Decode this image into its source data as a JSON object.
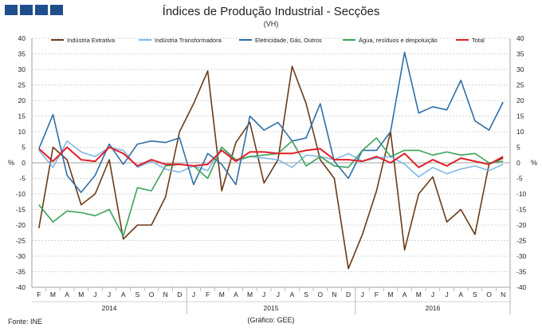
{
  "header": {
    "title": "Índices de Produção Industrial - Secções",
    "subtitle": "(VH)"
  },
  "footer": {
    "source": "Fonte: INE",
    "credit": "(Gráfico: GEE)"
  },
  "colors": {
    "logo": "#1f4e8c",
    "grid": "#c8c8c8"
  },
  "chart_data": {
    "type": "line",
    "title": "Índices de Produção Industrial - Secções",
    "subtitle": "(VH)",
    "ylabel": "%",
    "ylabel_right": "%",
    "ylim": [
      -40,
      40
    ],
    "yticks": [
      -40,
      -35,
      -30,
      -25,
      -20,
      -15,
      -10,
      -5,
      0,
      5,
      10,
      15,
      20,
      25,
      30,
      35,
      40
    ],
    "month_labels": [
      "F",
      "M",
      "A",
      "M",
      "J",
      "J",
      "A",
      "S",
      "O",
      "N",
      "D",
      "J",
      "F",
      "M",
      "A",
      "M",
      "J",
      "J",
      "A",
      "S",
      "O",
      "N",
      "D",
      "J",
      "F",
      "M",
      "A",
      "M",
      "J",
      "J",
      "A",
      "S",
      "O",
      "N"
    ],
    "year_groups": [
      {
        "label": "2014",
        "start": 0,
        "end": 10
      },
      {
        "label": "2015",
        "start": 11,
        "end": 22
      },
      {
        "label": "2016",
        "start": 23,
        "end": 33
      }
    ],
    "legend_position": "top",
    "series": [
      {
        "name": "Indústria Extrativa",
        "color": "#6b3a16",
        "values": [
          -21,
          5,
          1,
          -13.5,
          -10,
          1,
          -24.5,
          -20,
          -20,
          -11,
          10,
          19,
          29.5,
          -9,
          6.5,
          13,
          -6.5,
          1,
          31,
          19,
          1,
          -5,
          -34,
          -23,
          -9,
          10,
          -28,
          -10,
          -4.5,
          -19,
          -15,
          -23,
          -0.5,
          1.5
        ]
      },
      {
        "name": "Indústria Transformadora",
        "color": "#7fb9e6",
        "values": [
          4,
          -1.5,
          7,
          3.5,
          2,
          5,
          4,
          -1.5,
          0.5,
          -2,
          -3,
          -1,
          -2.5,
          5,
          0.5,
          2,
          1.5,
          1,
          -1.5,
          2.5,
          2,
          1,
          3,
          0.5,
          1.5,
          2,
          -0.5,
          -4.5,
          -1.5,
          -3.5,
          -2,
          -1,
          -2.5,
          -0.5
        ]
      },
      {
        "name": "Eletricidade, Gás, Outros",
        "color": "#2e6fa7",
        "values": [
          4.5,
          15.5,
          -4,
          -9.5,
          -4,
          6,
          -0.5,
          6,
          7,
          6.5,
          8,
          -7,
          3,
          -0.5,
          -7,
          15,
          10.5,
          13,
          7,
          8,
          19,
          0.5,
          -5,
          4,
          4,
          10,
          35.5,
          16,
          18,
          17,
          26.5,
          13.5,
          10.5,
          19.5
        ]
      },
      {
        "name": "Água, resíduos e despoluição",
        "color": "#3aa35a",
        "values": [
          -13.5,
          -19,
          -15.5,
          -16,
          -17,
          -15,
          -23.5,
          -8,
          -9,
          -1,
          -0.5,
          -1,
          -5,
          5,
          1,
          2,
          2.5,
          3,
          7,
          -1,
          2,
          -1,
          -1.5,
          4,
          8,
          2,
          4,
          4,
          2.5,
          3.5,
          2.5,
          3,
          0,
          0.5
        ]
      },
      {
        "name": "Total",
        "color": "#e0202a",
        "values": [
          4.5,
          0.5,
          5,
          1,
          0.5,
          5,
          3,
          -1,
          1,
          -0.5,
          -0.5,
          -1,
          -0.5,
          4,
          0.5,
          3.5,
          3.5,
          3,
          3,
          4,
          4.5,
          1,
          1,
          0.5,
          2,
          0,
          3,
          -1.5,
          1,
          -1,
          1.5,
          0.5,
          -0.5,
          2
        ]
      }
    ]
  }
}
